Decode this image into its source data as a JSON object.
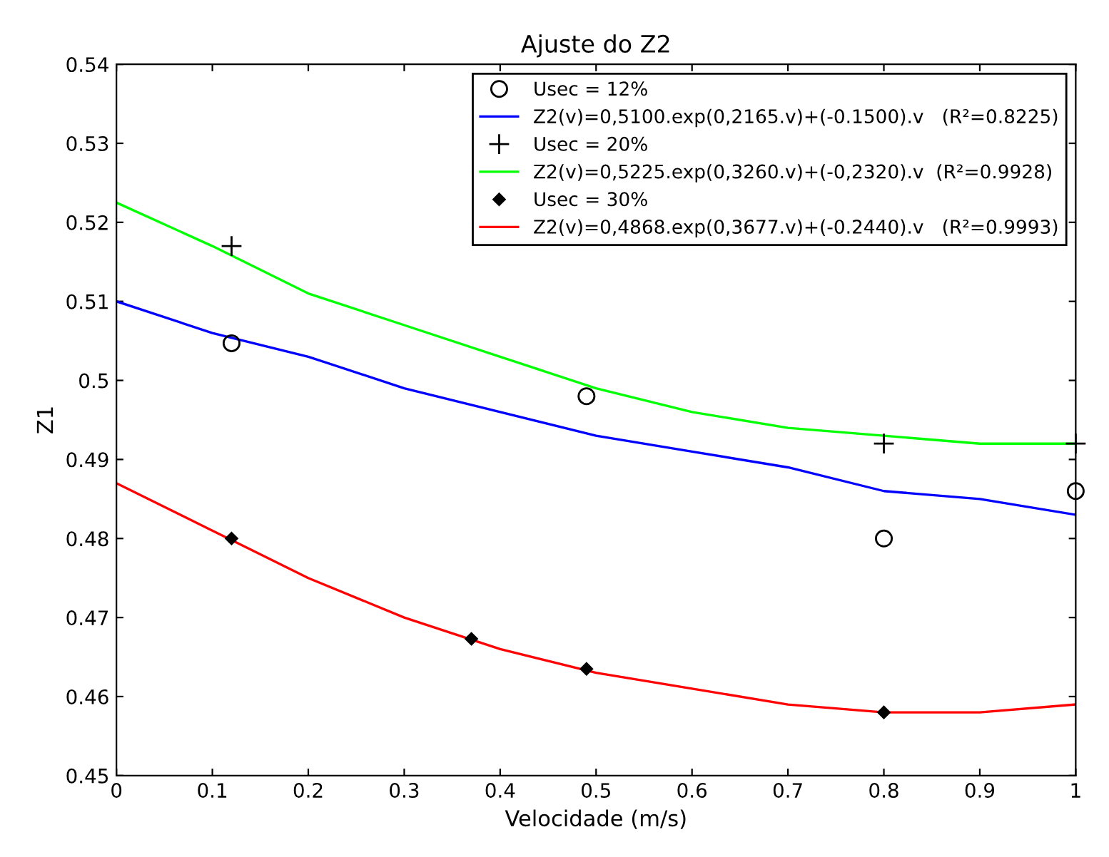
{
  "chart_data": {
    "type": "scatter",
    "title": "Ajuste do Z2",
    "xlabel": "Velocidade (m/s)",
    "ylabel": "Z1",
    "xlim": [
      0,
      1
    ],
    "xticks": [
      0,
      0.1,
      0.2,
      0.3,
      0.4,
      0.5,
      0.6,
      0.7,
      0.8,
      0.9,
      1
    ],
    "ylim": [
      0.45,
      0.54
    ],
    "yticks": [
      0.45,
      0.46,
      0.47,
      0.48,
      0.49,
      0.5,
      0.51,
      0.52,
      0.53,
      0.54
    ],
    "grid": false,
    "legend": "top right",
    "series": [
      {
        "name": "Usec = 12%",
        "marker": "circle",
        "color": "#000000",
        "x": [
          0.12,
          0.49,
          0.8,
          1.0
        ],
        "values": [
          0.5047,
          0.498,
          0.48,
          0.486
        ]
      },
      {
        "name": "Z2(v)=0,5100.exp(0,2165.v)+(-0.1500).v   (R²=0.8225)",
        "type": "line",
        "marker": "none",
        "color": "#0000ff",
        "x": [
          0,
          0.1,
          0.2,
          0.3,
          0.4,
          0.5,
          0.6,
          0.7,
          0.8,
          0.9,
          1
        ],
        "values": [
          0.51,
          0.506,
          0.503,
          0.499,
          0.496,
          0.493,
          0.491,
          0.489,
          0.486,
          0.485,
          0.483
        ]
      },
      {
        "name": "Usec = 20%",
        "marker": "cross",
        "color": "#000000",
        "x": [
          0.12,
          0.8,
          1.0
        ],
        "values": [
          0.517,
          0.492,
          0.492
        ]
      },
      {
        "name": "Z2(v)=0,5225.exp(0,3260.v)+(-0,2320).v  (R²=0.9928)",
        "type": "line",
        "marker": "none",
        "color": "#00ff00",
        "x": [
          0,
          0.1,
          0.2,
          0.3,
          0.4,
          0.5,
          0.6,
          0.7,
          0.8,
          0.9,
          1
        ],
        "values": [
          0.5225,
          0.517,
          0.511,
          0.507,
          0.503,
          0.499,
          0.496,
          0.494,
          0.493,
          0.492,
          0.492
        ]
      },
      {
        "name": "Usec = 30%",
        "marker": "diamond",
        "color": "#000000",
        "x": [
          0.12,
          0.37,
          0.49,
          0.8
        ],
        "values": [
          0.48,
          0.4673,
          0.4635,
          0.458
        ]
      },
      {
        "name": "Z2(v)=0,4868.exp(0,3677.v)+(-0.2440).v   (R²=0.9993)",
        "type": "line",
        "marker": "none",
        "color": "#ff0000",
        "x": [
          0,
          0.1,
          0.2,
          0.3,
          0.4,
          0.5,
          0.6,
          0.7,
          0.8,
          0.9,
          1
        ],
        "values": [
          0.487,
          0.481,
          0.475,
          0.47,
          0.466,
          0.463,
          0.461,
          0.459,
          0.458,
          0.458,
          0.459
        ]
      }
    ]
  }
}
